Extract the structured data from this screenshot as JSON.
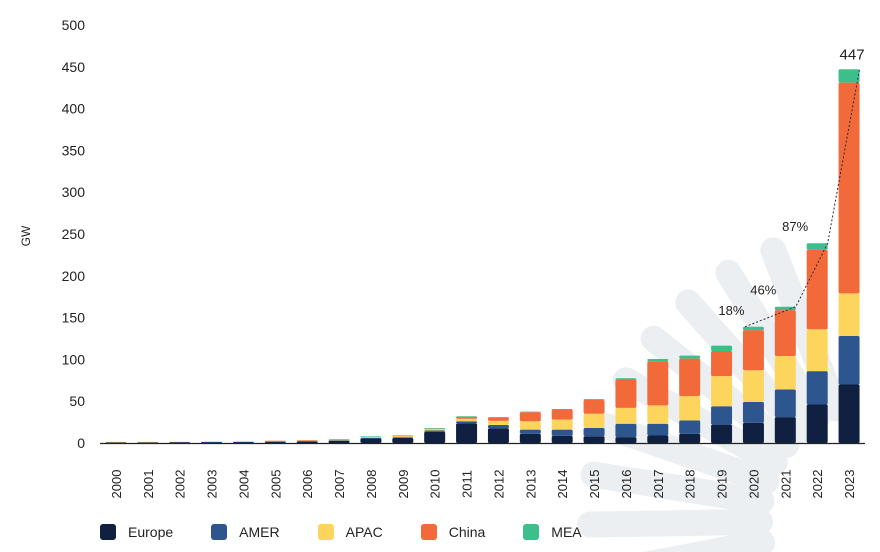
{
  "chart_data": {
    "type": "bar",
    "stacked": true,
    "title": "",
    "xlabel": "",
    "ylabel": "GW",
    "ylim": [
      0,
      500
    ],
    "yticks": [
      0,
      50,
      100,
      150,
      200,
      250,
      300,
      350,
      400,
      450,
      500
    ],
    "categories": [
      "2000",
      "2001",
      "2002",
      "2003",
      "2004",
      "2005",
      "2006",
      "2007",
      "2008",
      "2009",
      "2010",
      "2011",
      "2012",
      "2013",
      "2014",
      "2015",
      "2016",
      "2017",
      "2018",
      "2019",
      "2020",
      "2021",
      "2022",
      "2023"
    ],
    "series": [
      {
        "name": "Europe",
        "color": "#0f2040",
        "values": [
          0.8,
          0.8,
          0.9,
          1.0,
          1.2,
          1.5,
          1.9,
          2.8,
          5.5,
          6.0,
          13.5,
          23.5,
          17.5,
          11.0,
          8.5,
          8.0,
          7.0,
          9.0,
          11.0,
          22.0,
          24.0,
          31.0,
          46.0,
          70.0
        ]
      },
      {
        "name": "AMER",
        "color": "#2e568e",
        "values": [
          0.2,
          0.2,
          0.2,
          0.2,
          0.2,
          0.2,
          0.3,
          0.4,
          0.7,
          0.9,
          1.5,
          2.5,
          4.0,
          5.0,
          7.5,
          10.0,
          16.0,
          14.0,
          16.0,
          22.0,
          25.0,
          33.0,
          40.0,
          58.0
        ]
      },
      {
        "name": "APAC",
        "color": "#fdd45c",
        "values": [
          0.5,
          0.5,
          0.6,
          0.7,
          0.8,
          0.9,
          1.0,
          1.0,
          1.3,
          1.6,
          2.0,
          3.0,
          5.0,
          10.0,
          12.0,
          17.0,
          19.0,
          22.0,
          29.0,
          36.0,
          38.0,
          40.0,
          50.0,
          51.0
        ]
      },
      {
        "name": "China",
        "color": "#f26a3a",
        "values": [
          0.0,
          0.0,
          0.0,
          0.0,
          0.0,
          0.1,
          0.1,
          0.1,
          0.3,
          0.5,
          0.7,
          2.5,
          4.0,
          11.0,
          12.0,
          16.5,
          34.0,
          53.0,
          45.0,
          30.0,
          48.0,
          55.0,
          95.0,
          252.0
        ]
      },
      {
        "name": "MEA",
        "color": "#3dbf8c",
        "values": [
          0.0,
          0.0,
          0.0,
          0.0,
          0.0,
          0.0,
          0.0,
          0.1,
          0.1,
          0.1,
          0.2,
          0.5,
          0.5,
          0.6,
          0.7,
          1.0,
          1.5,
          2.5,
          3.5,
          6.5,
          4.0,
          4.0,
          8.0,
          16.0
        ]
      }
    ],
    "annotations": [
      {
        "category": "2020",
        "text": "18%"
      },
      {
        "category": "2021",
        "text": "46%"
      },
      {
        "category": "2022",
        "text": "87%"
      },
      {
        "category": "2023",
        "text": "447"
      }
    ],
    "trend_line_categories": [
      "2020",
      "2021",
      "2022",
      "2023"
    ],
    "legend_position": "bottom-left",
    "grid": false
  }
}
